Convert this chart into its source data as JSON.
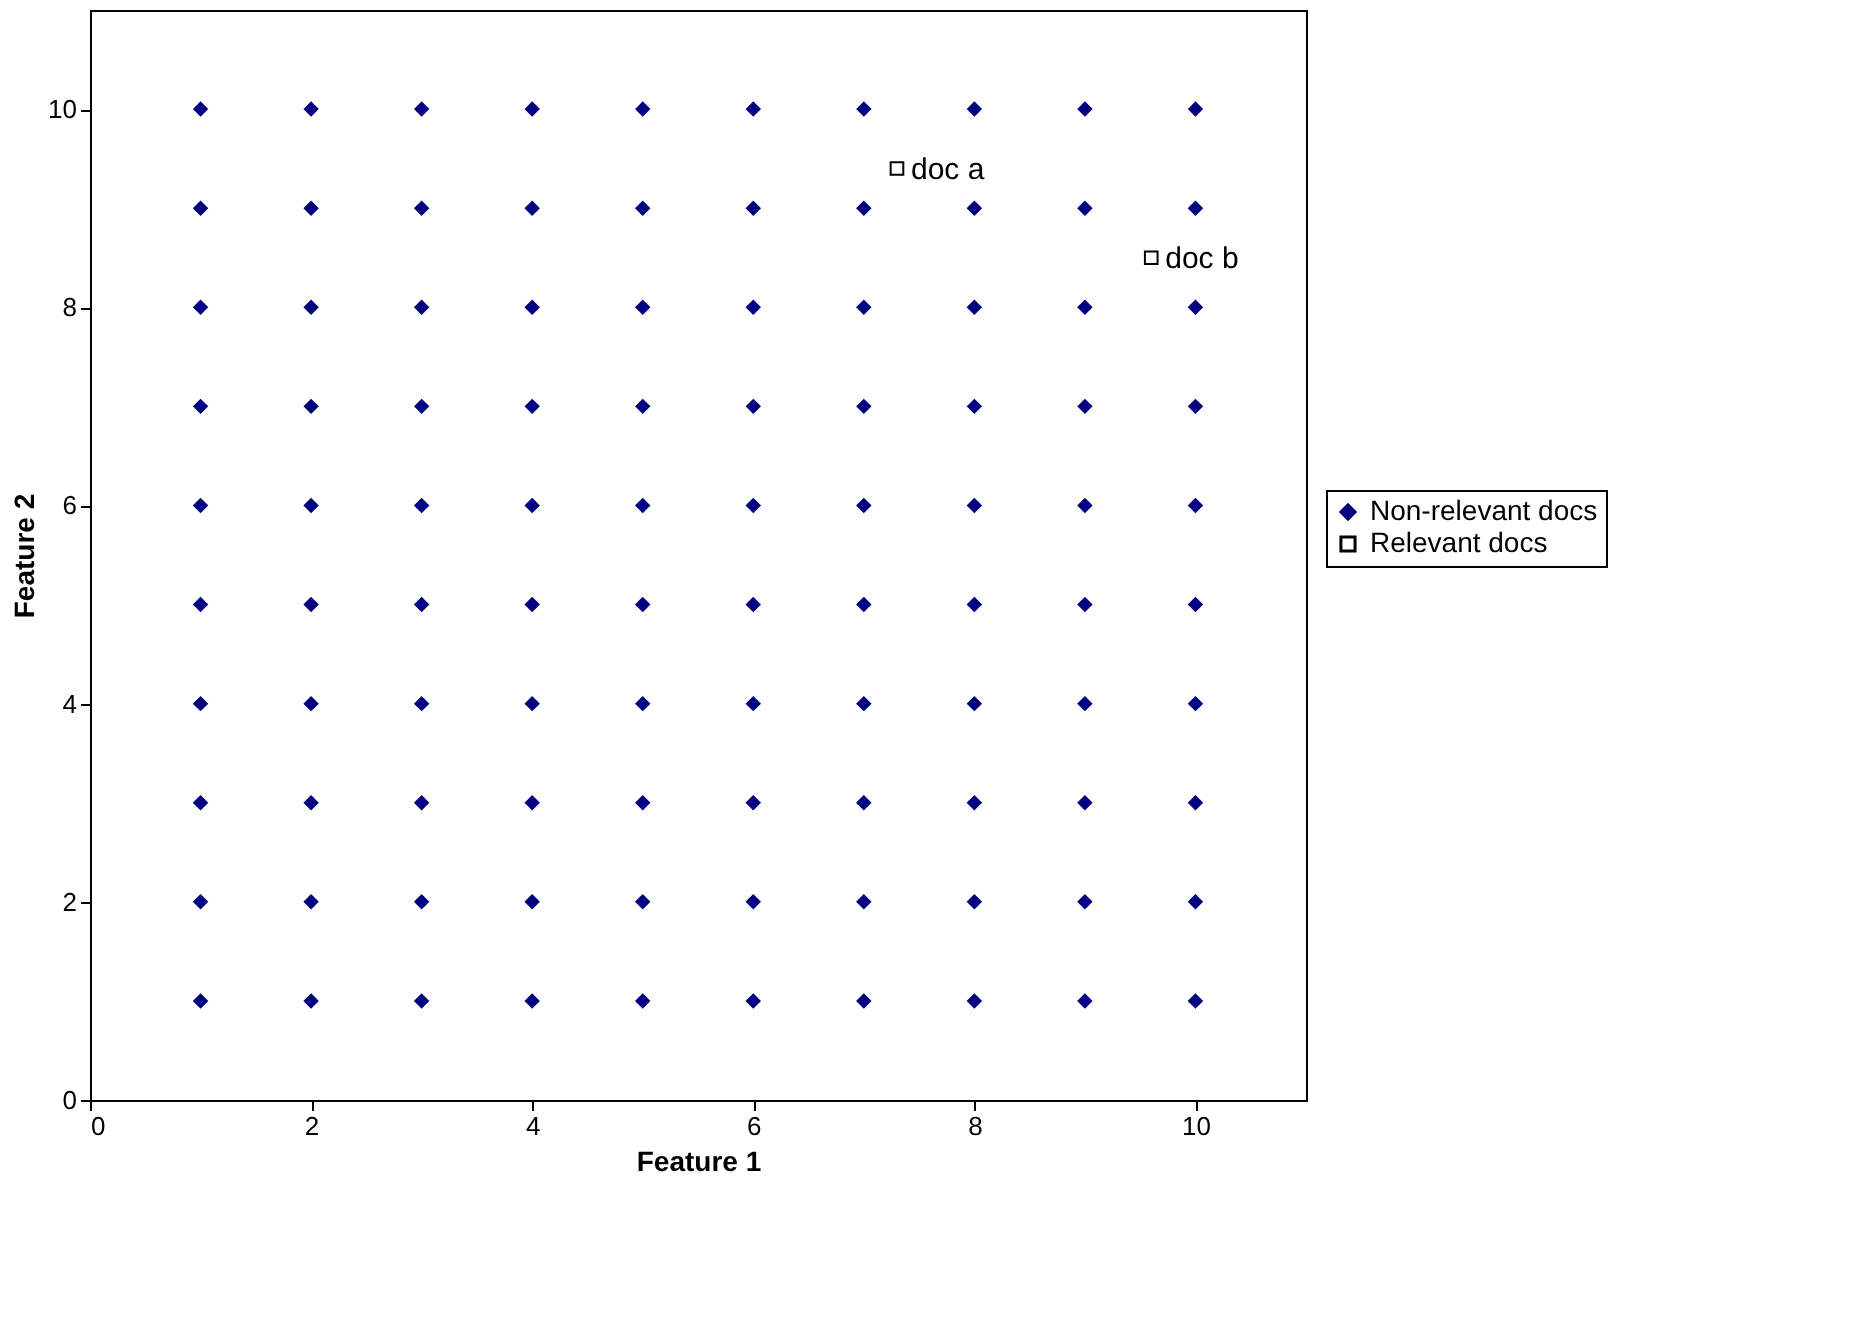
{
  "chart_data": {
    "type": "scatter",
    "xlabel": "Feature 1",
    "ylabel": "Feature 2",
    "xlim": [
      0,
      11
    ],
    "ylim": [
      0,
      11
    ],
    "xticks": [
      0,
      2,
      4,
      6,
      8,
      10
    ],
    "yticks": [
      0,
      2,
      4,
      6,
      8,
      10
    ],
    "grid": false,
    "legend": "right",
    "series": [
      {
        "name": "Non-relevant docs",
        "color": "#000080",
        "marker": "diamond",
        "x": [
          1,
          2,
          3,
          4,
          5,
          6,
          7,
          8,
          9,
          10,
          1,
          2,
          3,
          4,
          5,
          6,
          7,
          8,
          9,
          10,
          1,
          2,
          3,
          4,
          5,
          6,
          7,
          8,
          9,
          10,
          1,
          2,
          3,
          4,
          5,
          6,
          7,
          8,
          9,
          10,
          1,
          2,
          3,
          4,
          5,
          6,
          7,
          8,
          9,
          10,
          1,
          2,
          3,
          4,
          5,
          6,
          7,
          8,
          9,
          10,
          1,
          2,
          3,
          4,
          5,
          6,
          7,
          8,
          9,
          10,
          1,
          2,
          3,
          4,
          5,
          6,
          7,
          8,
          9,
          10,
          1,
          2,
          3,
          4,
          5,
          6,
          7,
          8,
          9,
          10,
          1,
          2,
          3,
          4,
          5,
          6,
          7,
          8,
          9,
          10
        ],
        "values": [
          1,
          1,
          1,
          1,
          1,
          1,
          1,
          1,
          1,
          1,
          2,
          2,
          2,
          2,
          2,
          2,
          2,
          2,
          2,
          2,
          3,
          3,
          3,
          3,
          3,
          3,
          3,
          3,
          3,
          3,
          4,
          4,
          4,
          4,
          4,
          4,
          4,
          4,
          4,
          4,
          5,
          5,
          5,
          5,
          5,
          5,
          5,
          5,
          5,
          5,
          6,
          6,
          6,
          6,
          6,
          6,
          6,
          6,
          6,
          6,
          7,
          7,
          7,
          7,
          7,
          7,
          7,
          7,
          7,
          7,
          8,
          8,
          8,
          8,
          8,
          8,
          8,
          8,
          8,
          8,
          9,
          9,
          9,
          9,
          9,
          9,
          9,
          9,
          9,
          9,
          10,
          10,
          10,
          10,
          10,
          10,
          10,
          10,
          10,
          10
        ]
      },
      {
        "name": "Relevant docs",
        "color": "#000000",
        "marker": "square",
        "x": [
          7.3,
          9.6
        ],
        "values": [
          9.4,
          8.5
        ]
      }
    ],
    "annotations": [
      {
        "text": "doc a",
        "x": 7.3,
        "y": 9.4
      },
      {
        "text": "doc b",
        "x": 9.6,
        "y": 8.5
      }
    ]
  }
}
